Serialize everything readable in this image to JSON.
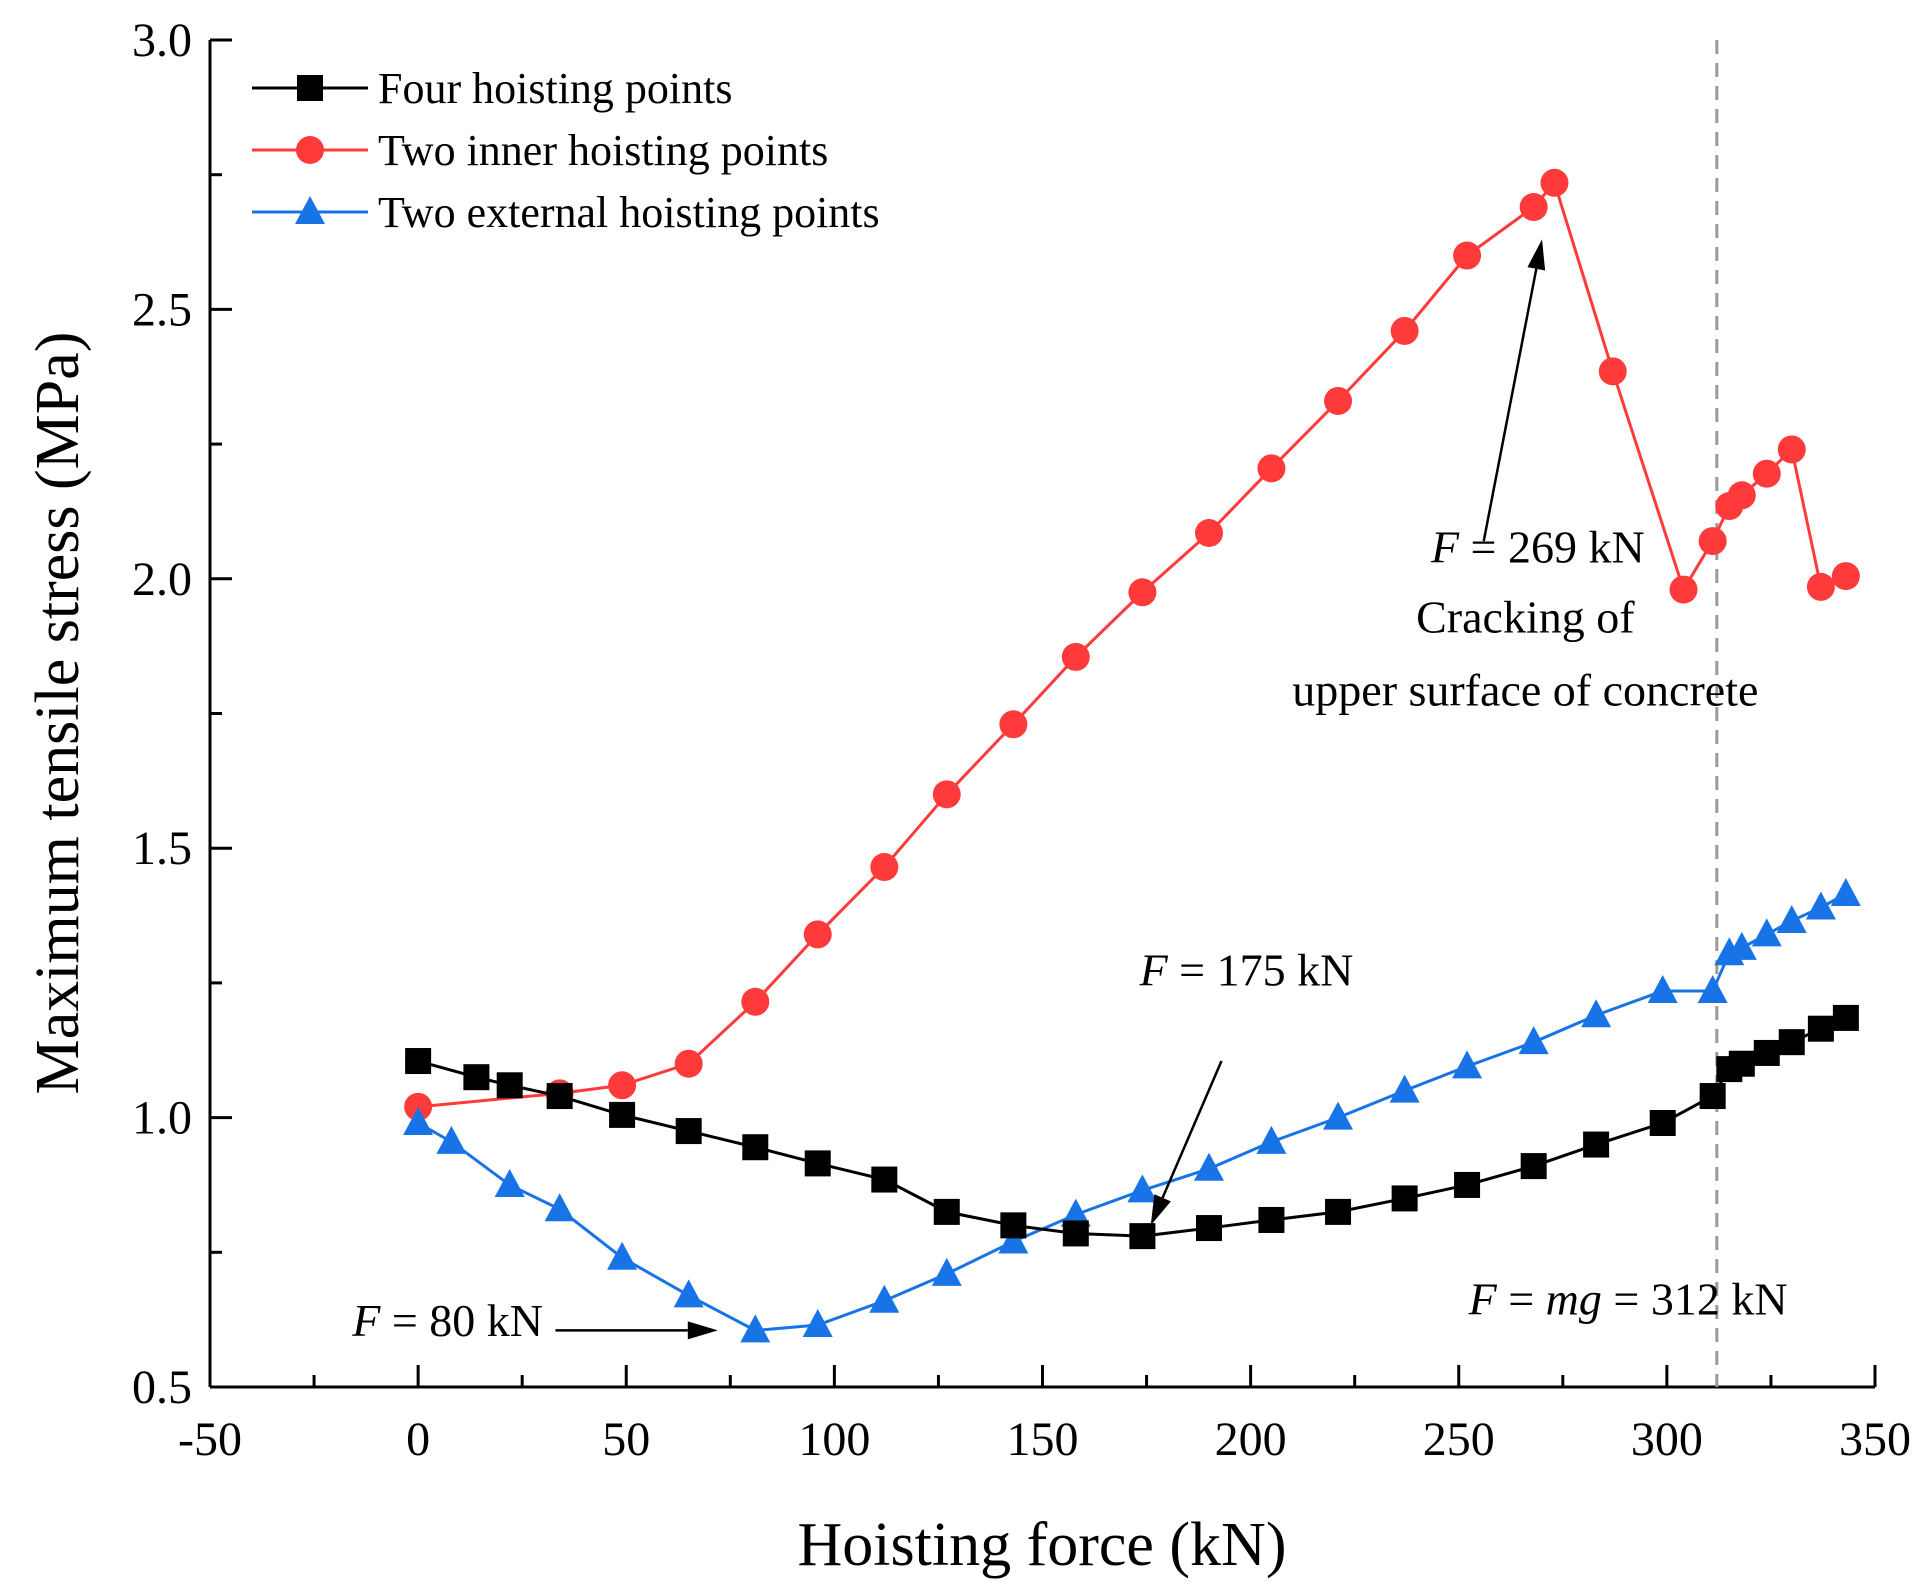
{
  "chart_data": {
    "type": "line",
    "xlabel": "Hoisting force (kN)",
    "ylabel": "Maximum tensile stress (MPa)",
    "xlim": [
      -50,
      350
    ],
    "ylim": [
      0.5,
      3.0
    ],
    "xticks": [
      "-50",
      "0",
      "50",
      "100",
      "150",
      "200",
      "250",
      "300",
      "350"
    ],
    "yticks": [
      "0.5",
      "1.0",
      "1.5",
      "2.0",
      "2.5",
      "3.0"
    ],
    "xtick_values": [
      -50,
      0,
      50,
      100,
      150,
      200,
      250,
      300,
      350
    ],
    "ytick_values": [
      0.5,
      1.0,
      1.5,
      2.0,
      2.5,
      3.0
    ],
    "legend_position": "top-left",
    "series": [
      {
        "name": "Four hoisting points",
        "color": "#000000",
        "marker": "square",
        "x": [
          0,
          14,
          22,
          34,
          49,
          65,
          81,
          96,
          112,
          127,
          143,
          158,
          174,
          190,
          205,
          221,
          237,
          252,
          268,
          283,
          299,
          311,
          315,
          318,
          324,
          330,
          337,
          343
        ],
        "y": [
          1.105,
          1.075,
          1.06,
          1.04,
          1.005,
          0.975,
          0.945,
          0.915,
          0.885,
          0.825,
          0.8,
          0.785,
          0.78,
          0.795,
          0.81,
          0.825,
          0.85,
          0.875,
          0.91,
          0.95,
          0.99,
          1.04,
          1.09,
          1.1,
          1.12,
          1.14,
          1.165,
          1.185
        ]
      },
      {
        "name": "Two inner hoisting points",
        "color": "#ff3a3a",
        "marker": "circle",
        "x": [
          0,
          34,
          49,
          65,
          81,
          96,
          112,
          127,
          143,
          158,
          174,
          190,
          205,
          221,
          237,
          252,
          268,
          273,
          287,
          304,
          311,
          315,
          318,
          324,
          330,
          337,
          343
        ],
        "y": [
          1.02,
          1.045,
          1.06,
          1.1,
          1.215,
          1.34,
          1.465,
          1.6,
          1.73,
          1.855,
          1.975,
          2.085,
          2.205,
          2.33,
          2.46,
          2.6,
          2.69,
          2.735,
          2.385,
          1.98,
          2.07,
          2.135,
          2.155,
          2.195,
          2.24,
          1.985,
          2.005
        ]
      },
      {
        "name": "Two external hoisting points",
        "color": "#1874e6",
        "marker": "triangle",
        "x": [
          0,
          8,
          22,
          34,
          49,
          65,
          81,
          96,
          112,
          127,
          143,
          158,
          174,
          190,
          205,
          221,
          237,
          252,
          268,
          283,
          299,
          311,
          315,
          318,
          324,
          330,
          337,
          343
        ],
        "y": [
          0.99,
          0.955,
          0.875,
          0.83,
          0.74,
          0.67,
          0.605,
          0.615,
          0.66,
          0.71,
          0.77,
          0.82,
          0.865,
          0.905,
          0.955,
          1.0,
          1.05,
          1.095,
          1.14,
          1.19,
          1.235,
          1.235,
          1.305,
          1.315,
          1.34,
          1.365,
          1.39,
          1.415
        ]
      }
    ],
    "annotations": [
      {
        "prefix": "F",
        "text": " = 269 kN",
        "x": 269,
        "y": 2.03
      },
      {
        "text": "Cracking of",
        "x": 266,
        "y": 1.9
      },
      {
        "text": "upper surface of concrete",
        "x": 266,
        "y": 1.765
      },
      {
        "prefix": "F",
        "text": " = 175 kN",
        "x": 199,
        "y": 1.245
      },
      {
        "prefix": "F",
        "text": " = 80 kN",
        "x": 30,
        "y": 0.595
      },
      {
        "prefix": "F",
        "text": " = ",
        "mid": "mg",
        "suffix": " = 312 kN",
        "x": 329,
        "y": 0.635
      }
    ],
    "arrows": [
      {
        "from": [
          256,
          2.07
        ],
        "to": [
          270,
          2.63
        ]
      },
      {
        "from": [
          193,
          1.105
        ],
        "to": [
          176,
          0.8
        ]
      },
      {
        "from": [
          33,
          0.605
        ],
        "to": [
          72,
          0.605
        ]
      }
    ],
    "reference_line": {
      "x": 312,
      "style": "dashed",
      "color": "#9a9a9a"
    }
  }
}
